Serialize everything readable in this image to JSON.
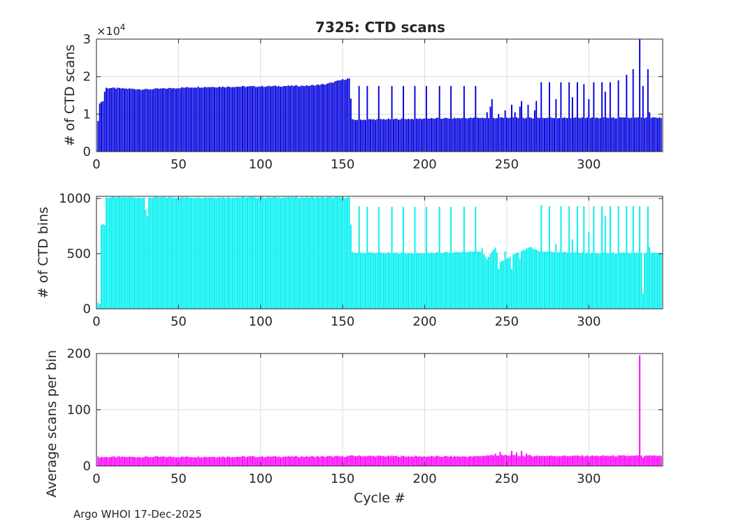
{
  "title": "7325: CTD scans",
  "footer": "Argo WHOI 17-Dec-2025",
  "x_ticks": [
    0,
    50,
    100,
    150,
    200,
    250,
    300
  ],
  "colors": {
    "scans": "#0000dd",
    "bins": "#00f0f0",
    "avg": "#ff00ff",
    "grid": "#dcdcdc",
    "axis": "#262626"
  },
  "chart_data": [
    {
      "type": "bar",
      "id": "scans",
      "title": "7325: CTD scans",
      "ylabel": "# of CTD scans",
      "xlabel": "",
      "exponent_base": "×10",
      "exponent_power": "4",
      "xlim": [
        0,
        345
      ],
      "ylim": [
        0,
        3
      ],
      "y_ticks": [
        0,
        1,
        2,
        3
      ],
      "series_note": "values in units of 10^4 scans",
      "keypoints": [
        [
          1,
          0.8
        ],
        [
          2,
          1.3
        ],
        [
          4,
          1.35
        ],
        [
          5,
          1.6
        ],
        [
          6,
          1.7
        ],
        [
          30,
          1.66
        ],
        [
          60,
          1.72
        ],
        [
          100,
          1.74
        ],
        [
          130,
          1.76
        ],
        [
          140,
          1.8
        ],
        [
          150,
          1.92
        ],
        [
          154,
          1.95
        ],
        [
          156,
          0.85
        ],
        [
          200,
          0.88
        ],
        [
          235,
          0.9
        ],
        [
          260,
          0.9
        ],
        [
          300,
          0.9
        ],
        [
          340,
          0.9
        ],
        [
          344,
          0.9
        ]
      ],
      "spikes": [
        [
          160,
          1.75
        ],
        [
          165,
          1.75
        ],
        [
          172,
          1.75
        ],
        [
          180,
          1.75
        ],
        [
          187,
          1.75
        ],
        [
          194,
          1.75
        ],
        [
          201,
          1.75
        ],
        [
          209,
          1.75
        ],
        [
          216,
          1.75
        ],
        [
          224,
          1.75
        ],
        [
          231,
          1.75
        ],
        [
          238,
          1.05
        ],
        [
          240,
          1.2
        ],
        [
          241,
          1.4
        ],
        [
          245,
          1.0
        ],
        [
          249,
          1.1
        ],
        [
          253,
          1.25
        ],
        [
          255,
          1.05
        ],
        [
          258,
          1.2
        ],
        [
          259,
          1.35
        ],
        [
          263,
          1.25
        ],
        [
          267,
          1.1
        ],
        [
          268,
          1.35
        ],
        [
          271,
          1.85
        ],
        [
          276,
          1.85
        ],
        [
          280,
          1.4
        ],
        [
          283,
          1.85
        ],
        [
          288,
          1.85
        ],
        [
          290,
          1.45
        ],
        [
          293,
          1.85
        ],
        [
          297,
          1.8
        ],
        [
          300,
          1.4
        ],
        [
          303,
          1.85
        ],
        [
          308,
          1.85
        ],
        [
          310,
          1.6
        ],
        [
          313,
          1.85
        ],
        [
          318,
          1.9
        ],
        [
          323,
          2.05
        ],
        [
          327,
          2.2
        ],
        [
          331,
          3.0
        ],
        [
          333,
          1.75
        ],
        [
          336,
          2.2
        ],
        [
          337,
          1.05
        ]
      ]
    },
    {
      "type": "bar",
      "id": "bins",
      "title": "",
      "ylabel": "# of CTD bins",
      "xlabel": "",
      "xlim": [
        0,
        345
      ],
      "ylim": [
        0,
        1020
      ],
      "y_ticks": [
        0,
        500,
        1000
      ],
      "keypoints": [
        [
          1,
          50
        ],
        [
          2,
          50
        ],
        [
          3,
          760
        ],
        [
          5,
          760
        ],
        [
          6,
          1010
        ],
        [
          154,
          1010
        ],
        [
          156,
          510
        ],
        [
          200,
          505
        ],
        [
          235,
          520
        ],
        [
          238,
          450
        ],
        [
          243,
          560
        ],
        [
          246,
          420
        ],
        [
          252,
          470
        ],
        [
          258,
          520
        ],
        [
          265,
          560
        ],
        [
          270,
          520
        ],
        [
          300,
          505
        ],
        [
          344,
          505
        ]
      ],
      "spikes": [
        [
          4,
          770
        ],
        [
          30,
          900
        ],
        [
          31,
          840
        ],
        [
          160,
          930
        ],
        [
          165,
          925
        ],
        [
          172,
          925
        ],
        [
          180,
          925
        ],
        [
          187,
          925
        ],
        [
          194,
          925
        ],
        [
          201,
          925
        ],
        [
          209,
          925
        ],
        [
          216,
          925
        ],
        [
          224,
          925
        ],
        [
          231,
          925
        ],
        [
          235,
          550
        ],
        [
          245,
          360
        ],
        [
          249,
          520
        ],
        [
          253,
          360
        ],
        [
          258,
          450
        ],
        [
          271,
          940
        ],
        [
          276,
          930
        ],
        [
          280,
          590
        ],
        [
          283,
          930
        ],
        [
          288,
          930
        ],
        [
          290,
          630
        ],
        [
          293,
          930
        ],
        [
          297,
          930
        ],
        [
          300,
          700
        ],
        [
          303,
          930
        ],
        [
          308,
          930
        ],
        [
          310,
          840
        ],
        [
          313,
          930
        ],
        [
          318,
          930
        ],
        [
          323,
          930
        ],
        [
          327,
          930
        ],
        [
          331,
          930
        ],
        [
          333,
          140
        ],
        [
          336,
          930
        ],
        [
          337,
          560
        ]
      ]
    },
    {
      "type": "bar",
      "id": "avg",
      "title": "",
      "ylabel": "Average scans per bin",
      "xlabel": "Cycle #",
      "xlim": [
        0,
        345
      ],
      "ylim": [
        0,
        200
      ],
      "y_ticks": [
        0,
        100,
        200
      ],
      "keypoints": [
        [
          1,
          16
        ],
        [
          150,
          17
        ],
        [
          155,
          18
        ],
        [
          200,
          17
        ],
        [
          230,
          17
        ],
        [
          240,
          19
        ],
        [
          260,
          18
        ],
        [
          344,
          18
        ]
      ],
      "spikes": [
        [
          243,
          22
        ],
        [
          246,
          25
        ],
        [
          249,
          20
        ],
        [
          253,
          27
        ],
        [
          256,
          24
        ],
        [
          259,
          27
        ],
        [
          262,
          22
        ],
        [
          264,
          20
        ],
        [
          331,
          197
        ],
        [
          333,
          15
        ],
        [
          336,
          18
        ]
      ]
    }
  ]
}
